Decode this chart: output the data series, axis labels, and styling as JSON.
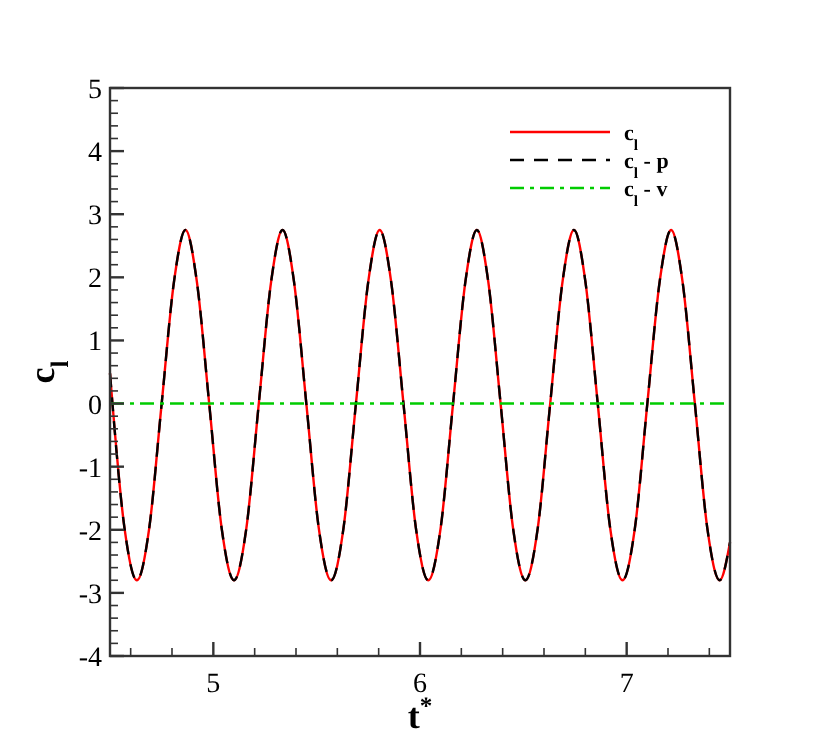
{
  "chart_data": {
    "type": "line",
    "xlabel": "t$^{*}$",
    "ylabel": "c$_{l}$",
    "xlim": [
      4.5,
      7.5
    ],
    "ylim": [
      -4,
      5
    ],
    "xticks": [
      {
        "value": 4.6,
        "label": null
      },
      {
        "value": 4.8,
        "label": null
      },
      5,
      {
        "value": 5.2,
        "label": null
      },
      {
        "value": 5.4,
        "label": null
      },
      {
        "value": 5.6,
        "label": null
      },
      {
        "value": 5.8,
        "label": null
      },
      6,
      {
        "value": 6.2,
        "label": null
      },
      {
        "value": 6.4,
        "label": null
      },
      {
        "value": 6.6,
        "label": null
      },
      {
        "value": 6.8,
        "label": null
      },
      7,
      {
        "value": 7.2,
        "label": null
      },
      {
        "value": 7.4,
        "label": null
      }
    ],
    "yticks": [
      -4,
      {
        "value": -3.8,
        "label": null
      },
      {
        "value": -3.6,
        "label": null
      },
      {
        "value": -3.4,
        "label": null
      },
      {
        "value": -3.2,
        "label": null
      },
      -3,
      {
        "value": -2.8,
        "label": null
      },
      {
        "value": -2.6,
        "label": null
      },
      {
        "value": -2.4,
        "label": null
      },
      {
        "value": -2.2,
        "label": null
      },
      -2,
      {
        "value": -1.8,
        "label": null
      },
      {
        "value": -1.6,
        "label": null
      },
      {
        "value": -1.4,
        "label": null
      },
      {
        "value": -1.2,
        "label": null
      },
      -1,
      {
        "value": -0.8,
        "label": null
      },
      {
        "value": -0.6,
        "label": null
      },
      {
        "value": -0.4,
        "label": null
      },
      {
        "value": -0.2,
        "label": null
      },
      0,
      {
        "value": 0.2,
        "label": null
      },
      {
        "value": 0.4,
        "label": null
      },
      {
        "value": 0.6,
        "label": null
      },
      {
        "value": 0.8,
        "label": null
      },
      1,
      {
        "value": 1.2,
        "label": null
      },
      {
        "value": 1.4,
        "label": null
      },
      {
        "value": 1.6,
        "label": null
      },
      {
        "value": 1.8,
        "label": null
      },
      2,
      {
        "value": 2.2,
        "label": null
      },
      {
        "value": 2.4,
        "label": null
      },
      {
        "value": 2.6,
        "label": null
      },
      {
        "value": 2.8,
        "label": null
      },
      3,
      {
        "value": 3.2,
        "label": null
      },
      {
        "value": 3.4,
        "label": null
      },
      {
        "value": 3.6,
        "label": null
      },
      {
        "value": 3.8,
        "label": null
      },
      4,
      {
        "value": 4.2,
        "label": null
      },
      {
        "value": 4.4,
        "label": null
      },
      {
        "value": 4.6,
        "label": null
      },
      {
        "value": 4.8,
        "label": null
      },
      5
    ],
    "grid": false,
    "legend": "top right",
    "x": [
      4.5,
      4.57,
      4.63,
      4.69,
      4.75,
      4.81,
      4.865,
      4.92,
      4.98,
      5.04,
      5.1,
      5.16,
      5.22,
      5.28,
      5.335,
      5.39,
      5.45,
      5.51,
      5.57,
      5.63,
      5.69,
      5.75,
      5.805,
      5.86,
      5.92,
      5.98,
      6.04,
      6.1,
      6.16,
      6.22,
      6.275,
      6.33,
      6.39,
      6.45,
      6.51,
      6.57,
      6.63,
      6.69,
      6.745,
      6.8,
      6.86,
      6.92,
      6.98,
      7.04,
      7.1,
      7.16,
      7.215,
      7.27,
      7.33,
      7.39,
      7.45,
      7.5
    ],
    "series": [
      {
        "name": "c$_{l}$",
        "color": "#ff0000",
        "line_style": "solid",
        "values": [
          0.48,
          -1.97,
          -2.8,
          -1.97,
          0,
          1.94,
          2.75,
          1.94,
          0,
          -1.97,
          -2.8,
          -1.97,
          0,
          1.94,
          2.75,
          1.94,
          0,
          -1.97,
          -2.8,
          -1.97,
          0,
          1.94,
          2.75,
          1.94,
          0,
          -1.97,
          -2.8,
          -1.97,
          0,
          1.94,
          2.75,
          1.94,
          0,
          -1.97,
          -2.8,
          -1.97,
          0,
          1.94,
          2.75,
          1.94,
          0,
          -1.97,
          -2.8,
          -1.97,
          0,
          1.94,
          2.75,
          1.94,
          0,
          -1.97,
          -2.8,
          -2.2
        ]
      },
      {
        "name": "c$_{l}$ - p",
        "color": "#000000",
        "line_style": "dashed",
        "values": [
          0.48,
          -1.97,
          -2.8,
          -1.97,
          0,
          1.94,
          2.75,
          1.94,
          0,
          -1.97,
          -2.8,
          -1.97,
          0,
          1.94,
          2.75,
          1.94,
          0,
          -1.97,
          -2.8,
          -1.97,
          0,
          1.94,
          2.75,
          1.94,
          0,
          -1.97,
          -2.8,
          -1.97,
          0,
          1.94,
          2.75,
          1.94,
          0,
          -1.97,
          -2.8,
          -1.97,
          0,
          1.94,
          2.75,
          1.94,
          0,
          -1.97,
          -2.8,
          -1.97,
          0,
          1.94,
          2.75,
          1.94,
          0,
          -1.97,
          -2.8,
          -2.2
        ]
      },
      {
        "name": "c$_{l}$ - v",
        "color": "#00cc00",
        "line_style": "dashdot",
        "x": [
          4.5,
          7.5
        ],
        "values": [
          0,
          0
        ]
      }
    ]
  }
}
